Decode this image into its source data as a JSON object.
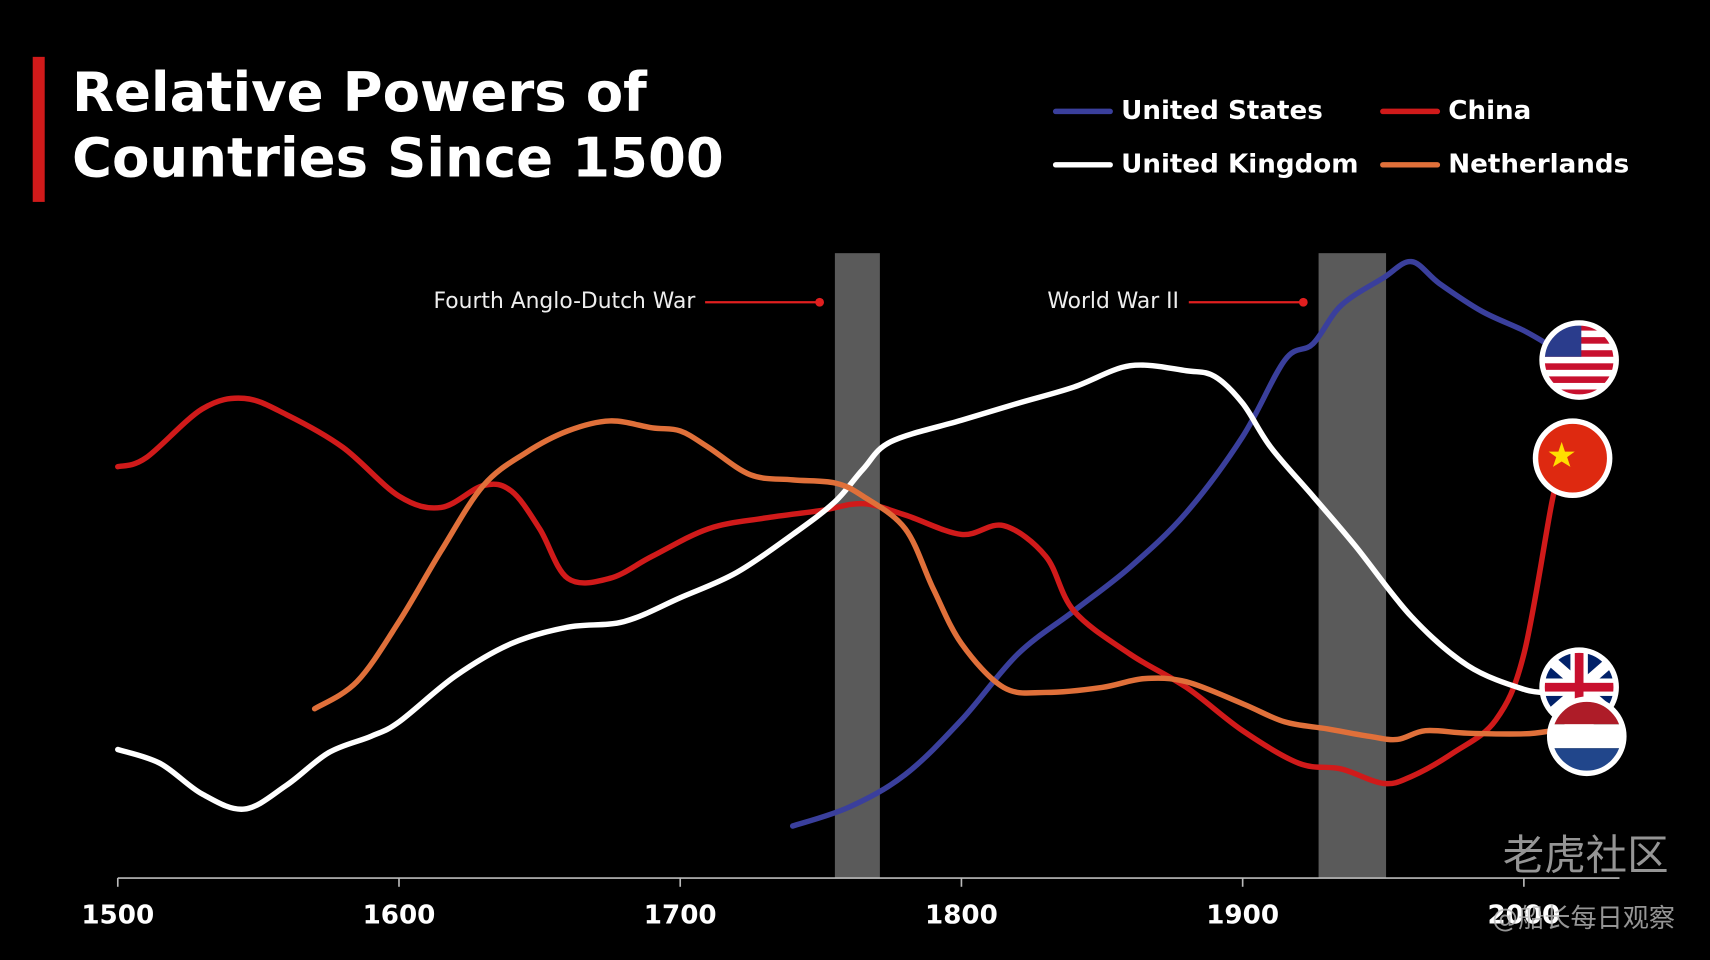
{
  "chart_data": {
    "type": "line",
    "title": [
      "Relative Powers of",
      "Countries Since 1500"
    ],
    "xlim": [
      1500,
      2034
    ],
    "xticks": [
      1500,
      1600,
      1700,
      1800,
      1900,
      2000
    ],
    "ylim": [
      0,
      100
    ],
    "legend": "top-right",
    "annotations": [
      {
        "text": "Fourth Anglo-Dutch War",
        "x_range": [
          1755,
          1771
        ]
      },
      {
        "text": "World War II",
        "x_range": [
          1927,
          1951
        ]
      }
    ],
    "series": [
      {
        "name": "United States",
        "color": "#3a3f9c",
        "x": [
          1740,
          1760,
          1780,
          1800,
          1820,
          1840,
          1860,
          1880,
          1900,
          1915,
          1925,
          1935,
          1950,
          1960,
          1970,
          1985,
          2000,
          2010
        ],
        "values": [
          8.3,
          11.3,
          16.5,
          25.2,
          35.7,
          42.6,
          49.6,
          58.3,
          70.4,
          82.6,
          85.2,
          91.3,
          95.7,
          98.3,
          94.8,
          90.4,
          87.3,
          84.7
        ]
      },
      {
        "name": "China",
        "color": "#d01a1a",
        "x": [
          1500,
          1510,
          1530,
          1545,
          1560,
          1580,
          1600,
          1615,
          1630,
          1640,
          1650,
          1660,
          1675,
          1690,
          1710,
          1730,
          1750,
          1765,
          1780,
          1800,
          1815,
          1830,
          1840,
          1860,
          1880,
          1900,
          1920,
          1935,
          1950,
          1960,
          1975,
          1990,
          2000,
          2010,
          2014
        ],
        "values": [
          65.6,
          67.0,
          74.8,
          76.5,
          73.9,
          68.7,
          60.9,
          59.1,
          62.6,
          61.7,
          55.7,
          47.8,
          47.8,
          51.3,
          55.7,
          57.4,
          58.6,
          59.7,
          57.9,
          54.8,
          56.2,
          51.3,
          42.6,
          35.7,
          30.4,
          23.5,
          18.3,
          17.4,
          15.1,
          16.2,
          20.0,
          25.2,
          35.7,
          60.0,
          67.0
        ]
      },
      {
        "name": "United Kingdom",
        "color": "#ffffff",
        "x": [
          1500,
          1515,
          1530,
          1545,
          1560,
          1575,
          1590,
          1600,
          1620,
          1640,
          1660,
          1680,
          1700,
          1720,
          1740,
          1755,
          1765,
          1775,
          1800,
          1820,
          1840,
          1860,
          1880,
          1890,
          1900,
          1910,
          1925,
          1940,
          1960,
          1980,
          2000,
          2010
        ],
        "values": [
          20.5,
          18.3,
          13.4,
          11.0,
          14.8,
          20.0,
          22.6,
          24.9,
          32.2,
          37.4,
          40.0,
          40.9,
          44.7,
          48.7,
          54.8,
          60.0,
          65.2,
          69.6,
          73.0,
          75.7,
          78.3,
          81.7,
          80.9,
          80.0,
          75.7,
          68.7,
          60.9,
          53.0,
          41.7,
          33.9,
          30.1,
          29.6
        ]
      },
      {
        "name": "Netherlands",
        "color": "#e0703a",
        "x": [
          1570,
          1585,
          1600,
          1615,
          1630,
          1645,
          1660,
          1675,
          1690,
          1700,
          1710,
          1725,
          1740,
          1755,
          1765,
          1780,
          1790,
          1800,
          1815,
          1830,
          1850,
          1865,
          1880,
          1900,
          1915,
          1930,
          1945,
          1955,
          1965,
          1980,
          2000,
          2010
        ],
        "values": [
          27.0,
          31.3,
          40.9,
          52.2,
          62.6,
          67.8,
          71.3,
          72.9,
          71.8,
          71.3,
          68.7,
          64.3,
          63.5,
          63.0,
          60.9,
          55.7,
          46.1,
          37.4,
          30.4,
          29.6,
          30.4,
          31.8,
          31.3,
          27.8,
          24.9,
          23.8,
          22.6,
          22.1,
          23.5,
          23.1,
          23.0,
          23.5
        ]
      }
    ],
    "watermark": [
      "老虎社区",
      "@船长每日观察"
    ]
  }
}
